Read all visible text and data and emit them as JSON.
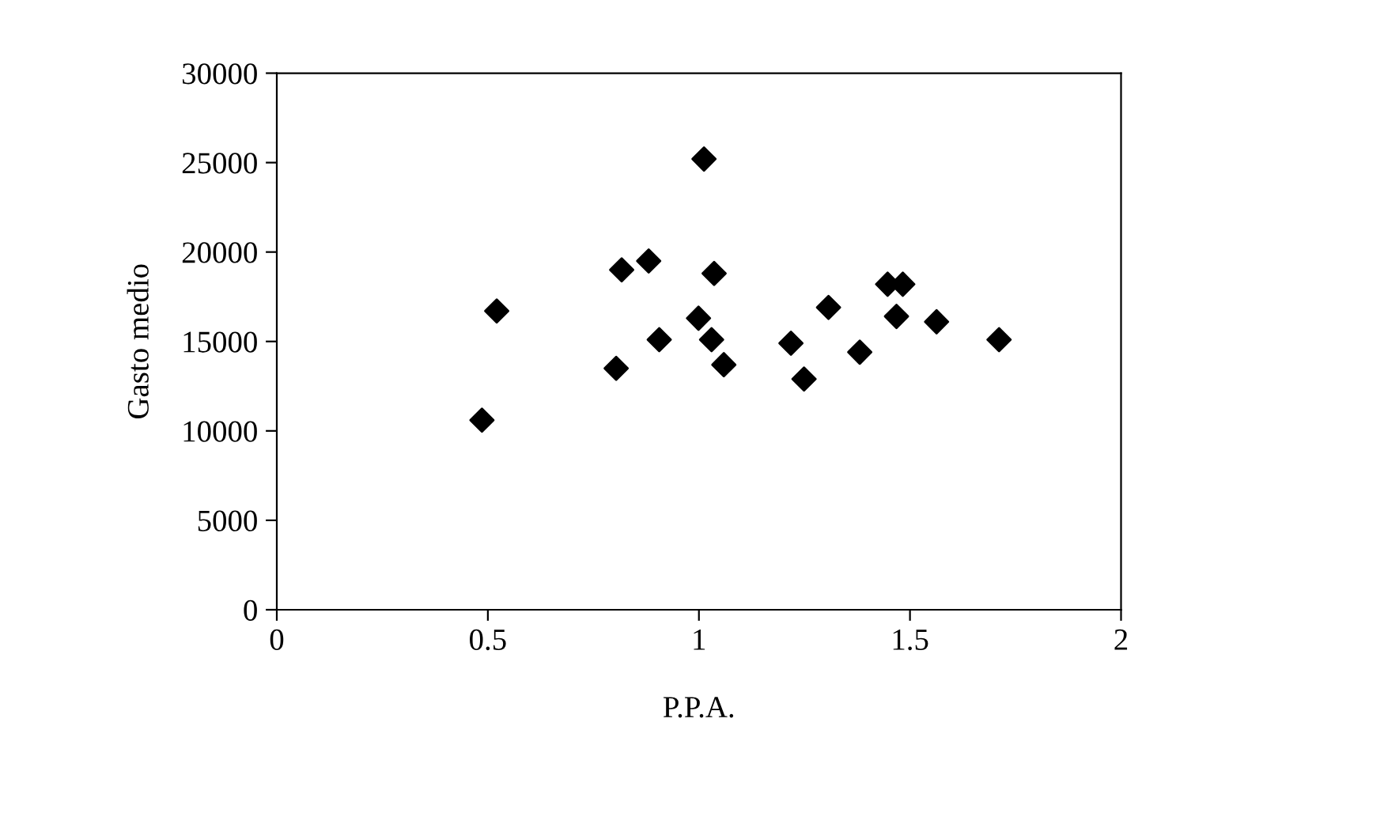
{
  "chart_data": {
    "type": "scatter",
    "xlabel": "P.P.A.",
    "ylabel": "Gasto medio",
    "x": [
      0.486,
      0.521,
      0.804,
      0.817,
      0.881,
      0.906,
      1.012,
      0.999,
      1.036,
      1.03,
      1.059,
      1.218,
      1.249,
      1.307,
      1.381,
      1.447,
      1.483,
      1.468,
      1.563,
      1.711
    ],
    "values": [
      10600,
      16700,
      13500,
      19000,
      19500,
      15100,
      25200,
      16300,
      18800,
      15100,
      13700,
      14900,
      12900,
      16900,
      14400,
      18200,
      18200,
      16400,
      16100,
      15100
    ],
    "color": "#000000",
    "marker": "diamond",
    "xlim": [
      0,
      2
    ],
    "ylim": [
      0,
      30000
    ],
    "xticks": [
      0,
      0.5,
      1,
      1.5,
      2
    ],
    "yticks": [
      0,
      5000,
      10000,
      15000,
      20000,
      25000,
      30000
    ],
    "grid": false,
    "legend": false
  }
}
